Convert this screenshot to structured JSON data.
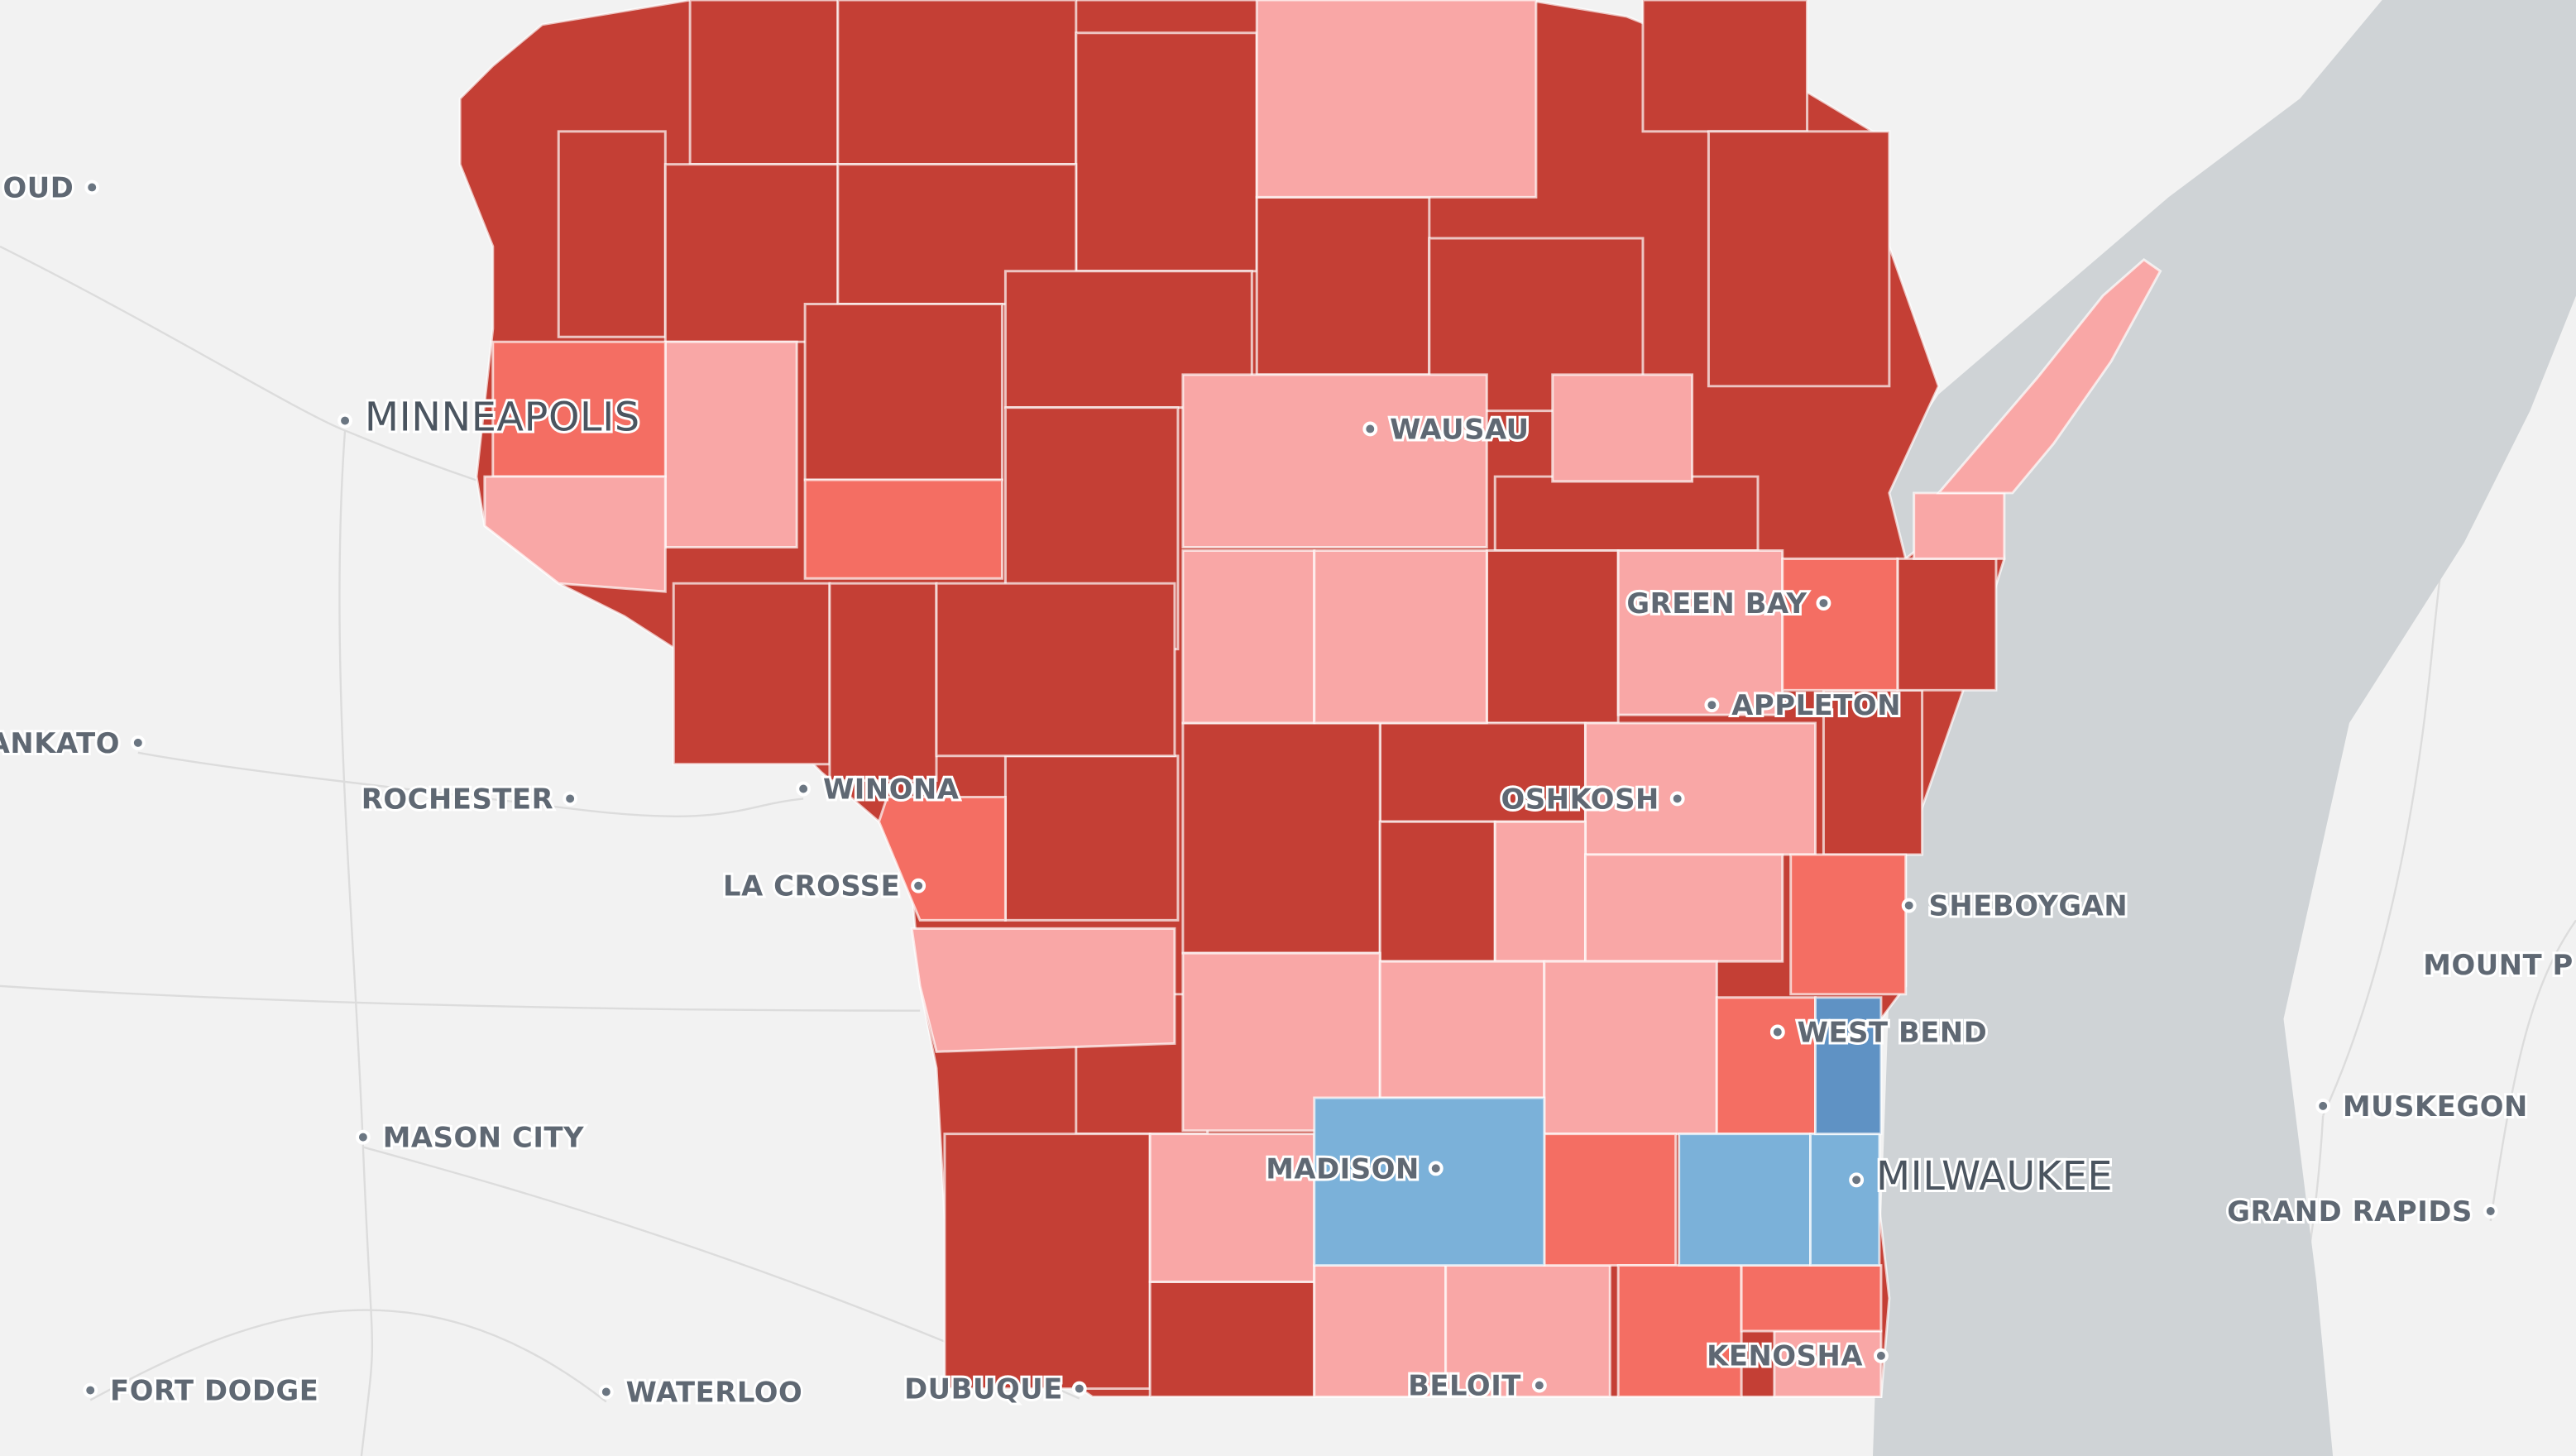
{
  "map": {
    "colors": {
      "background": "#f2f2f2",
      "water": "#cfd3d6",
      "dark-red": "#c43f35",
      "medium-red": "#f46e63",
      "light-red": "#f9a7a6",
      "light-blue": "#7bb1d9",
      "dark-blue": "#5f92c4"
    },
    "cities": [
      {
        "name": "OUD"
      },
      {
        "name": "MINNEAPOLIS"
      },
      {
        "name": "WAUSAU"
      },
      {
        "name": "GREEN BAY"
      },
      {
        "name": "APPLETON"
      },
      {
        "name": "ANKATO"
      },
      {
        "name": "ROCHESTER"
      },
      {
        "name": "WINONA"
      },
      {
        "name": "OSHKOSH"
      },
      {
        "name": "LA CROSSE"
      },
      {
        "name": "SHEBOYGAN"
      },
      {
        "name": "MOUNT P"
      },
      {
        "name": "WEST BEND"
      },
      {
        "name": "MUSKEGON"
      },
      {
        "name": "MASON CITY"
      },
      {
        "name": "MADISON"
      },
      {
        "name": "MILWAUKEE"
      },
      {
        "name": "GRAND RAPIDS"
      },
      {
        "name": "FORT DODGE"
      },
      {
        "name": "WATERLOO"
      },
      {
        "name": "DUBUQUE"
      },
      {
        "name": "BELOIT"
      },
      {
        "name": "KENOSHA"
      }
    ]
  }
}
